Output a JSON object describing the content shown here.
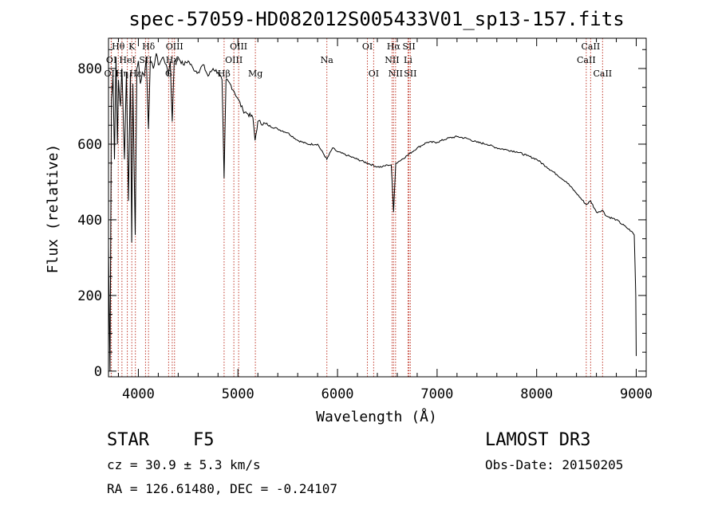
{
  "chart_data": {
    "type": "line",
    "title": "spec-57059-HD082012S005433V01_sp13-157.fits",
    "xlabel": "Wavelength (Å)",
    "ylabel": "Flux (relative)",
    "xlim": [
      3700,
      9100
    ],
    "ylim": [
      -15,
      880
    ],
    "xticks": [
      4000,
      5000,
      6000,
      7000,
      8000,
      9000
    ],
    "yticks": [
      0,
      200,
      400,
      600,
      800
    ],
    "series": [
      {
        "name": "spectrum",
        "x": [
          3700,
          3715,
          3730,
          3745,
          3760,
          3775,
          3790,
          3800,
          3820,
          3835,
          3860,
          3880,
          3900,
          3920,
          3933,
          3945,
          3968,
          3985,
          4000,
          4020,
          4040,
          4060,
          4080,
          4101,
          4120,
          4150,
          4180,
          4200,
          4250,
          4280,
          4300,
          4320,
          4340,
          4360,
          4400,
          4450,
          4500,
          4550,
          4600,
          4650,
          4700,
          4750,
          4800,
          4840,
          4861,
          4880,
          4920,
          4960,
          5000,
          5050,
          5100,
          5150,
          5172,
          5200,
          5300,
          5400,
          5500,
          5600,
          5700,
          5800,
          5893,
          5950,
          6000,
          6100,
          6200,
          6300,
          6400,
          6450,
          6500,
          6540,
          6563,
          6585,
          6620,
          6700,
          6800,
          6900,
          7000,
          7100,
          7200,
          7300,
          7400,
          7500,
          7600,
          7700,
          7800,
          7900,
          8000,
          8100,
          8200,
          8300,
          8400,
          8498,
          8542,
          8600,
          8662,
          8700,
          8800,
          8900,
          8950,
          8980,
          8995,
          9000
        ],
        "values": [
          330,
          0,
          720,
          780,
          560,
          830,
          600,
          770,
          700,
          800,
          560,
          790,
          450,
          790,
          340,
          760,
          360,
          800,
          820,
          760,
          790,
          780,
          830,
          640,
          820,
          800,
          840,
          810,
          830,
          810,
          780,
          820,
          660,
          820,
          830,
          810,
          820,
          800,
          790,
          810,
          780,
          800,
          790,
          770,
          510,
          770,
          760,
          740,
          720,
          690,
          680,
          670,
          610,
          660,
          650,
          640,
          630,
          610,
          600,
          600,
          560,
          590,
          580,
          570,
          560,
          550,
          540,
          540,
          545,
          545,
          420,
          550,
          555,
          570,
          590,
          605,
          605,
          615,
          620,
          615,
          605,
          600,
          590,
          585,
          580,
          570,
          560,
          540,
          520,
          500,
          470,
          440,
          450,
          420,
          425,
          410,
          400,
          380,
          370,
          360,
          200,
          40
        ]
      }
    ],
    "spectral_lines": [
      {
        "label": "Hθ",
        "wavelength": 3798,
        "row": 1
      },
      {
        "label": "OI",
        "wavelength": 3729,
        "row": 2
      },
      {
        "label": "OII",
        "wavelength": 3727,
        "row": 3
      },
      {
        "label": "Hη",
        "wavelength": 3835,
        "row": 3
      },
      {
        "label": "K",
        "wavelength": 3934,
        "row": 1
      },
      {
        "label": "HeI",
        "wavelength": 3889,
        "row": 2
      },
      {
        "label": "SII",
        "wavelength": 4072,
        "row": 2
      },
      {
        "label": "Hε",
        "wavelength": 3970,
        "row": 3
      },
      {
        "label": "Hδ",
        "wavelength": 4102,
        "row": 1
      },
      {
        "label": "OIII",
        "wavelength": 4363,
        "row": 1
      },
      {
        "label": "Hγ",
        "wavelength": 4340,
        "row": 2
      },
      {
        "label": "G",
        "wavelength": 4304,
        "row": 3
      },
      {
        "label": "OIII",
        "wavelength": 5007,
        "row": 1
      },
      {
        "label": "OIII",
        "wavelength": 4959,
        "row": 2
      },
      {
        "label": "Hβ",
        "wavelength": 4861,
        "row": 3
      },
      {
        "label": "Mg",
        "wavelength": 5175,
        "row": 3
      },
      {
        "label": "Na",
        "wavelength": 5893,
        "row": 2
      },
      {
        "label": "OI",
        "wavelength": 6300,
        "row": 1
      },
      {
        "label": "OI",
        "wavelength": 6363,
        "row": 3
      },
      {
        "label": "Hα",
        "wavelength": 6563,
        "row": 1
      },
      {
        "label": "NII",
        "wavelength": 6548,
        "row": 2
      },
      {
        "label": "NII",
        "wavelength": 6583,
        "row": 3
      },
      {
        "label": "SII",
        "wavelength": 6717,
        "row": 1
      },
      {
        "label": "Li",
        "wavelength": 6708,
        "row": 2
      },
      {
        "label": "SII",
        "wavelength": 6731,
        "row": 3
      },
      {
        "label": "CaII",
        "wavelength": 8542,
        "row": 1
      },
      {
        "label": "CaII",
        "wavelength": 8498,
        "row": 2
      },
      {
        "label": "CaII",
        "wavelength": 8662,
        "row": 3
      }
    ]
  },
  "info": {
    "object_class": "STAR",
    "subclass": "F5",
    "survey": "LAMOST DR3",
    "redshift": "cz = 30.9 ± 5.3 km/s",
    "obs_date": "Obs-Date: 20150205",
    "coords": "RA = 126.61480, DEC =  -0.24107"
  },
  "colors": {
    "line": "#000000",
    "marker": "#c0392b",
    "axis": "#000000"
  }
}
